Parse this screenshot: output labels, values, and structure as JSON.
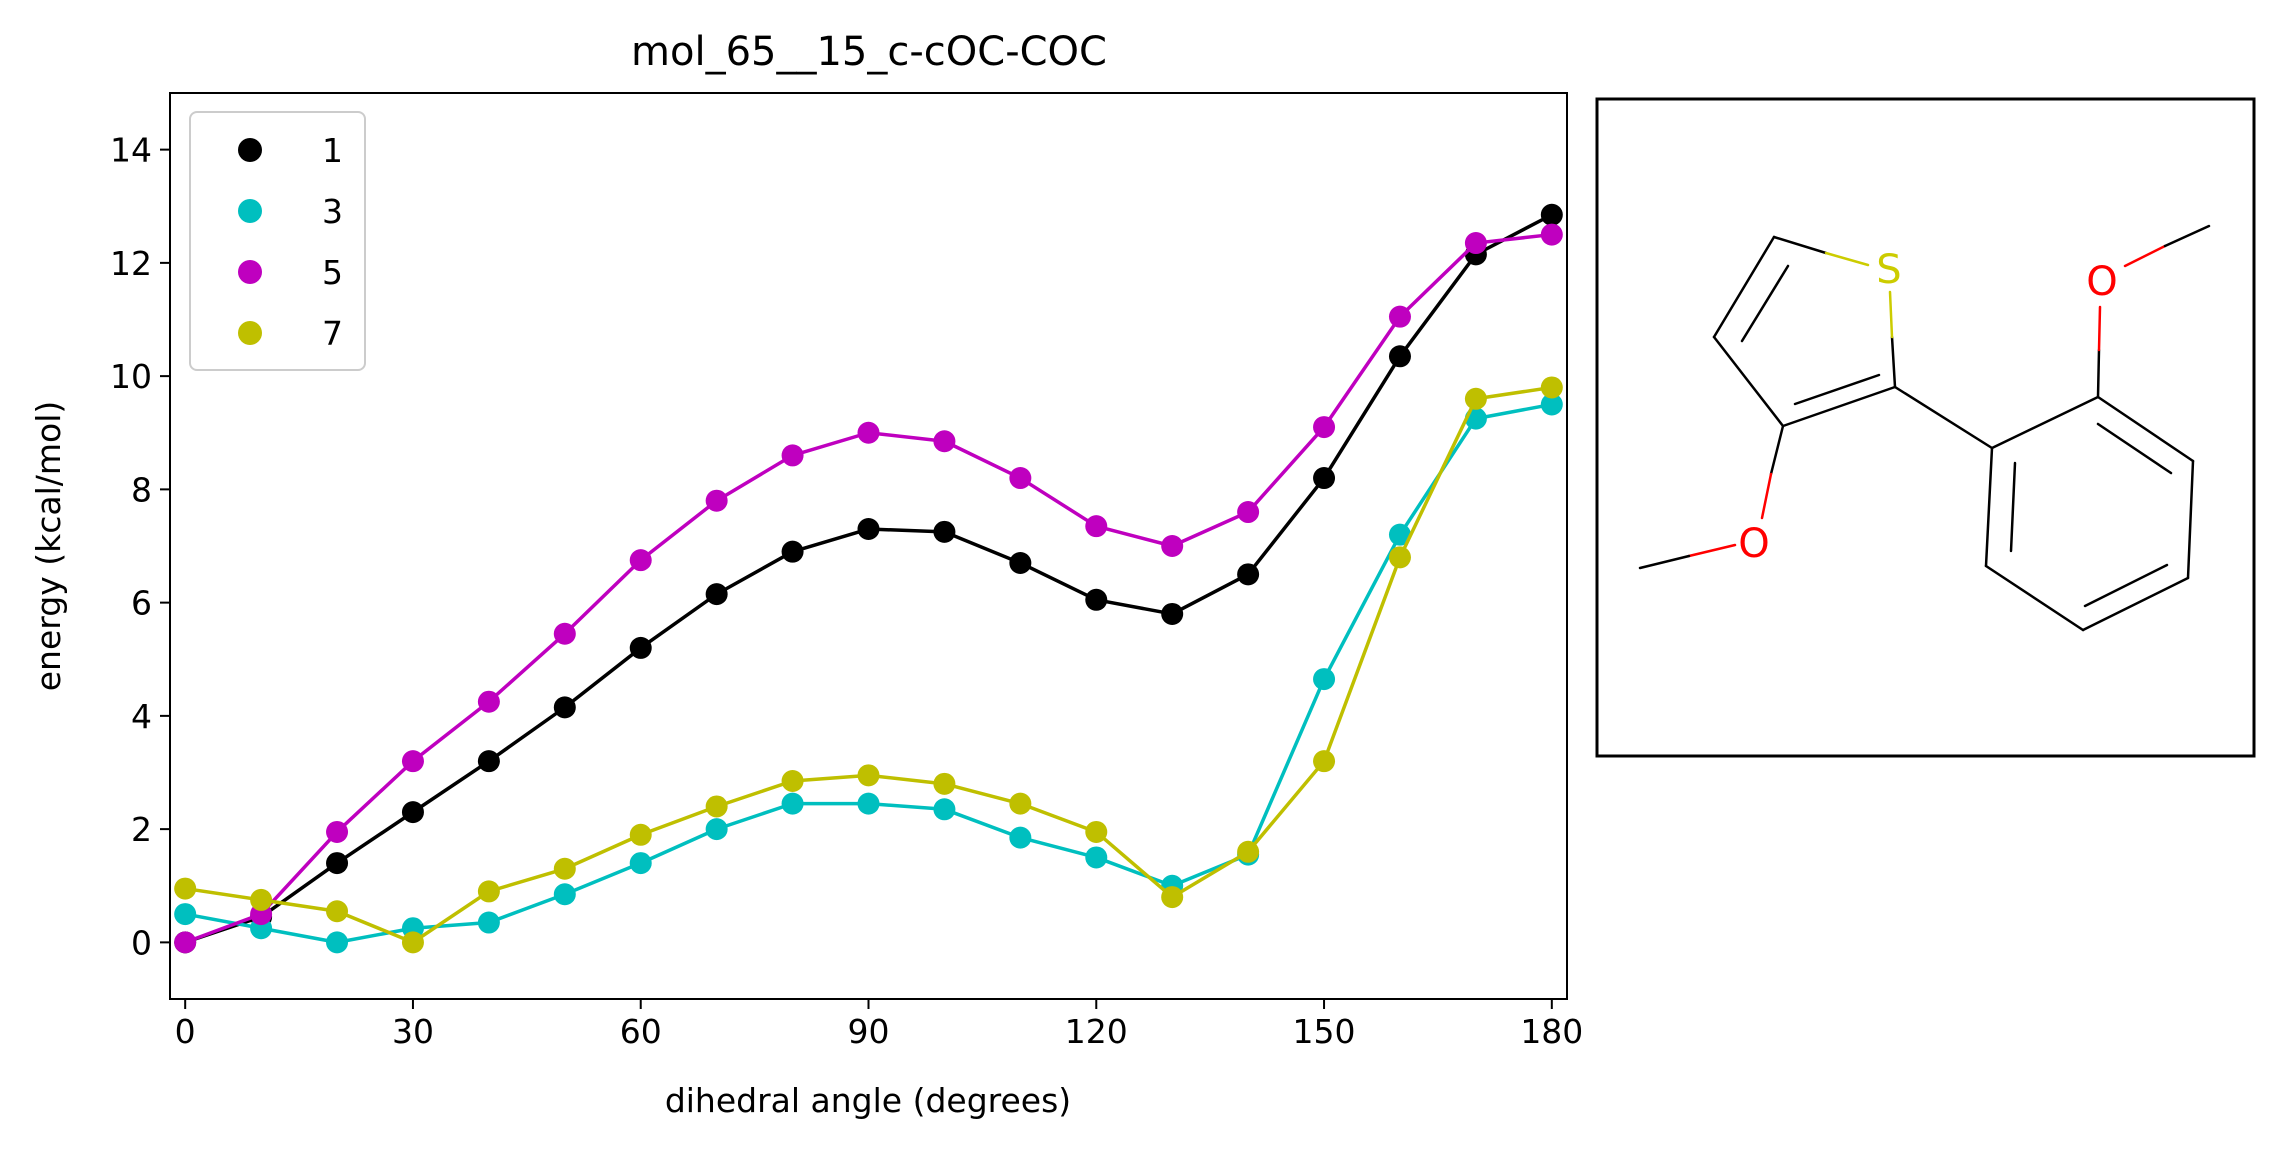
{
  "chart_data": {
    "type": "line",
    "title": "mol_65__15_c-cOC-COC",
    "xlabel": "dihedral angle (degrees)",
    "ylabel": "energy (kcal/mol)",
    "xlim": [
      -2,
      182
    ],
    "ylim": [
      -1,
      15
    ],
    "xticks": [
      0,
      30,
      60,
      90,
      120,
      150,
      180
    ],
    "yticks": [
      0,
      2,
      4,
      6,
      8,
      10,
      12,
      14
    ],
    "grid": false,
    "legend_position": "top-left",
    "x": [
      0,
      10,
      20,
      30,
      40,
      50,
      60,
      70,
      80,
      90,
      100,
      110,
      120,
      130,
      140,
      150,
      160,
      170,
      180
    ],
    "series": [
      {
        "name": "1",
        "color": "#000000",
        "values": [
          0.0,
          0.45,
          1.4,
          2.3,
          3.2,
          4.15,
          5.2,
          6.15,
          6.9,
          7.3,
          7.25,
          6.7,
          6.05,
          5.8,
          6.5,
          8.2,
          10.35,
          12.15,
          12.85
        ]
      },
      {
        "name": "3",
        "color": "#00bfbf",
        "values": [
          0.5,
          0.25,
          0.0,
          0.25,
          0.35,
          0.85,
          1.4,
          2.0,
          2.45,
          2.45,
          2.35,
          1.85,
          1.5,
          1.0,
          1.55,
          4.65,
          7.2,
          9.25,
          9.5
        ]
      },
      {
        "name": "5",
        "color": "#bf00bf",
        "values": [
          0.0,
          0.5,
          1.95,
          3.2,
          4.25,
          5.45,
          6.75,
          7.8,
          8.6,
          9.0,
          8.85,
          8.2,
          7.35,
          7.0,
          7.6,
          9.1,
          11.05,
          12.35,
          12.5
        ]
      },
      {
        "name": "7",
        "color": "#bfbf00",
        "values": [
          0.95,
          0.75,
          0.55,
          0.0,
          0.9,
          1.3,
          1.9,
          2.4,
          2.85,
          2.95,
          2.8,
          2.45,
          1.95,
          0.8,
          1.6,
          3.2,
          6.8,
          9.6,
          9.8
        ]
      }
    ]
  },
  "molecule": {
    "atoms": {
      "sulfur": "S",
      "oxygen_top": "O",
      "oxygen_bottom": "O"
    },
    "colors": {
      "bond": "#000000",
      "sulfur": "#cccc00",
      "oxygen": "#ff0000"
    }
  }
}
